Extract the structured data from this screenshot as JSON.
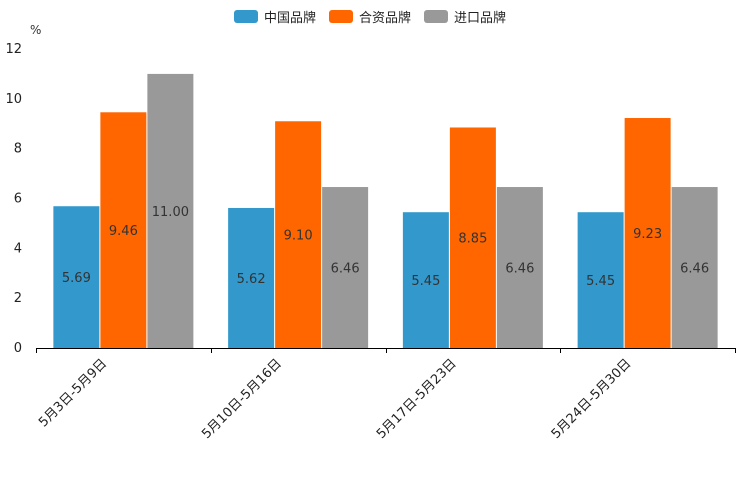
{
  "chart_data": {
    "type": "bar",
    "title": "",
    "unit_label": "%",
    "xlabel": "",
    "ylabel": "%",
    "ylim": [
      0,
      12
    ],
    "yticks": [
      0,
      2,
      4,
      6,
      8,
      10,
      12
    ],
    "grid": false,
    "legend_position": "top-center",
    "categories": [
      "5月3日-5月9日",
      "5月10日-5月16日",
      "5月17日-5月23日",
      "5月24日-5月30日"
    ],
    "series": [
      {
        "name": "中国品牌",
        "color": "#3399cc",
        "values": [
          5.69,
          5.62,
          5.45,
          5.45
        ],
        "labels": [
          "5.69",
          "5.62",
          "5.45",
          "5.45"
        ]
      },
      {
        "name": "合资品牌",
        "color": "#ff6600",
        "values": [
          9.46,
          9.1,
          8.85,
          9.23
        ],
        "labels": [
          "9.46",
          "9.10",
          "8.85",
          "9.23"
        ]
      },
      {
        "name": "进口品牌",
        "color": "#999999",
        "values": [
          11.0,
          6.46,
          6.46,
          6.46
        ],
        "labels": [
          "11.00",
          "6.46",
          "6.46",
          "6.46"
        ]
      }
    ]
  }
}
